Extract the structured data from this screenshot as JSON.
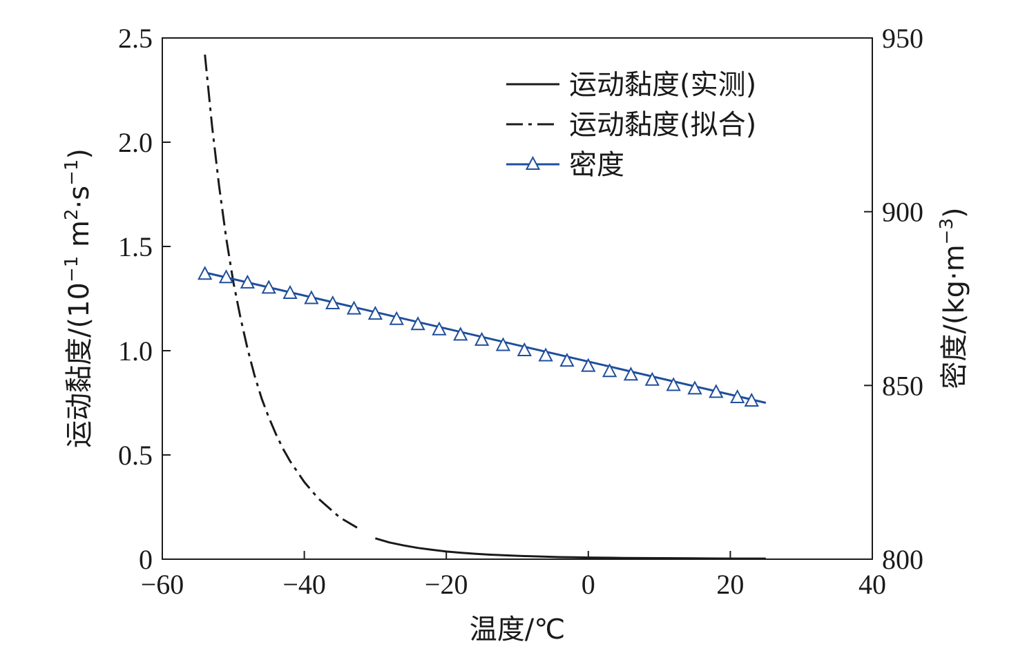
{
  "chart_data": {
    "type": "line",
    "title": "",
    "xlabel": "温度/℃",
    "ylabel_left": {
      "main": "运动黏度/(10",
      "sup1": "−1",
      "mid": " m",
      "sup2": "2",
      "tail": "·s",
      "sup3": "−1",
      "close": ")"
    },
    "ylabel_right": {
      "main": "密度/(kg·m",
      "sup": "−3",
      "close": ")"
    },
    "x_ticks": [
      {
        "value": -60,
        "label": "−60"
      },
      {
        "value": -40,
        "label": "−40"
      },
      {
        "value": -20,
        "label": "−20"
      },
      {
        "value": 0,
        "label": "0"
      },
      {
        "value": 20,
        "label": "20"
      },
      {
        "value": 40,
        "label": "40"
      }
    ],
    "y_left_ticks": [
      {
        "value": 0,
        "label": "0"
      },
      {
        "value": 0.5,
        "label": "0.5"
      },
      {
        "value": 1.0,
        "label": "1.0"
      },
      {
        "value": 1.5,
        "label": "1.5"
      },
      {
        "value": 2.0,
        "label": "2.0"
      },
      {
        "value": 2.5,
        "label": "2.5"
      }
    ],
    "y_right_ticks": [
      {
        "value": 800,
        "label": "800"
      },
      {
        "value": 850,
        "label": "850"
      },
      {
        "value": 900,
        "label": "900"
      },
      {
        "value": 950,
        "label": "950"
      }
    ],
    "xlim": [
      -60,
      40
    ],
    "ylim_left": [
      0,
      2.5
    ],
    "ylim_right": [
      800,
      950
    ],
    "legend_position": "top-right",
    "legend": [
      {
        "label": "运动黏度(实测)",
        "style": "solid",
        "color": "#1a1a1a"
      },
      {
        "label": "运动黏度(拟合)",
        "style": "dashdot",
        "color": "#1a1a1a"
      },
      {
        "label": "密度",
        "style": "triangle-line",
        "color": "#1f4e9c"
      }
    ],
    "series": [
      {
        "name": "运动黏度(拟合)",
        "axis": "left",
        "style": "dashdot",
        "color": "#1a1a1a",
        "x": [
          -54,
          -53,
          -52,
          -51,
          -50,
          -49,
          -48,
          -47,
          -46,
          -45,
          -44,
          -43,
          -42,
          -41,
          -40,
          -39,
          -38,
          -37,
          -36,
          -35,
          -34,
          -33,
          -32
        ],
        "y": [
          2.42,
          2.08,
          1.79,
          1.54,
          1.33,
          1.16,
          1.01,
          0.88,
          0.77,
          0.68,
          0.6,
          0.53,
          0.47,
          0.42,
          0.37,
          0.33,
          0.29,
          0.26,
          0.23,
          0.2,
          0.18,
          0.16,
          0.14
        ]
      },
      {
        "name": "运动黏度(实测)",
        "axis": "left",
        "style": "solid",
        "color": "#1a1a1a",
        "x": [
          -30,
          -28,
          -26,
          -24,
          -22,
          -20,
          -18,
          -16,
          -14,
          -12,
          -10,
          -8,
          -6,
          -4,
          -2,
          0,
          5,
          10,
          15,
          20,
          25
        ],
        "y": [
          0.1,
          0.08,
          0.066,
          0.054,
          0.045,
          0.037,
          0.031,
          0.026,
          0.022,
          0.019,
          0.016,
          0.014,
          0.012,
          0.01,
          0.009,
          0.008,
          0.006,
          0.005,
          0.004,
          0.003,
          0.003
        ]
      },
      {
        "name": "密度",
        "axis": "right",
        "style": "triangle-line",
        "color": "#1f4e9c",
        "line_x": [
          -54,
          25
        ],
        "line_y": [
          882.5,
          845
        ],
        "x": [
          -54,
          -51,
          -48,
          -45,
          -42,
          -39,
          -36,
          -33,
          -30,
          -27,
          -24,
          -21,
          -18,
          -15,
          -12,
          -9,
          -6,
          -3,
          0,
          3,
          6,
          9,
          12,
          15,
          18,
          21,
          23
        ],
        "y": [
          882,
          881,
          879.5,
          878,
          876.5,
          875,
          873.5,
          872,
          870.5,
          869,
          867.5,
          866,
          864.5,
          863,
          861.5,
          860,
          858.5,
          857,
          855.5,
          854,
          853,
          851.5,
          850,
          849,
          848,
          846.5,
          845.5
        ]
      }
    ]
  }
}
